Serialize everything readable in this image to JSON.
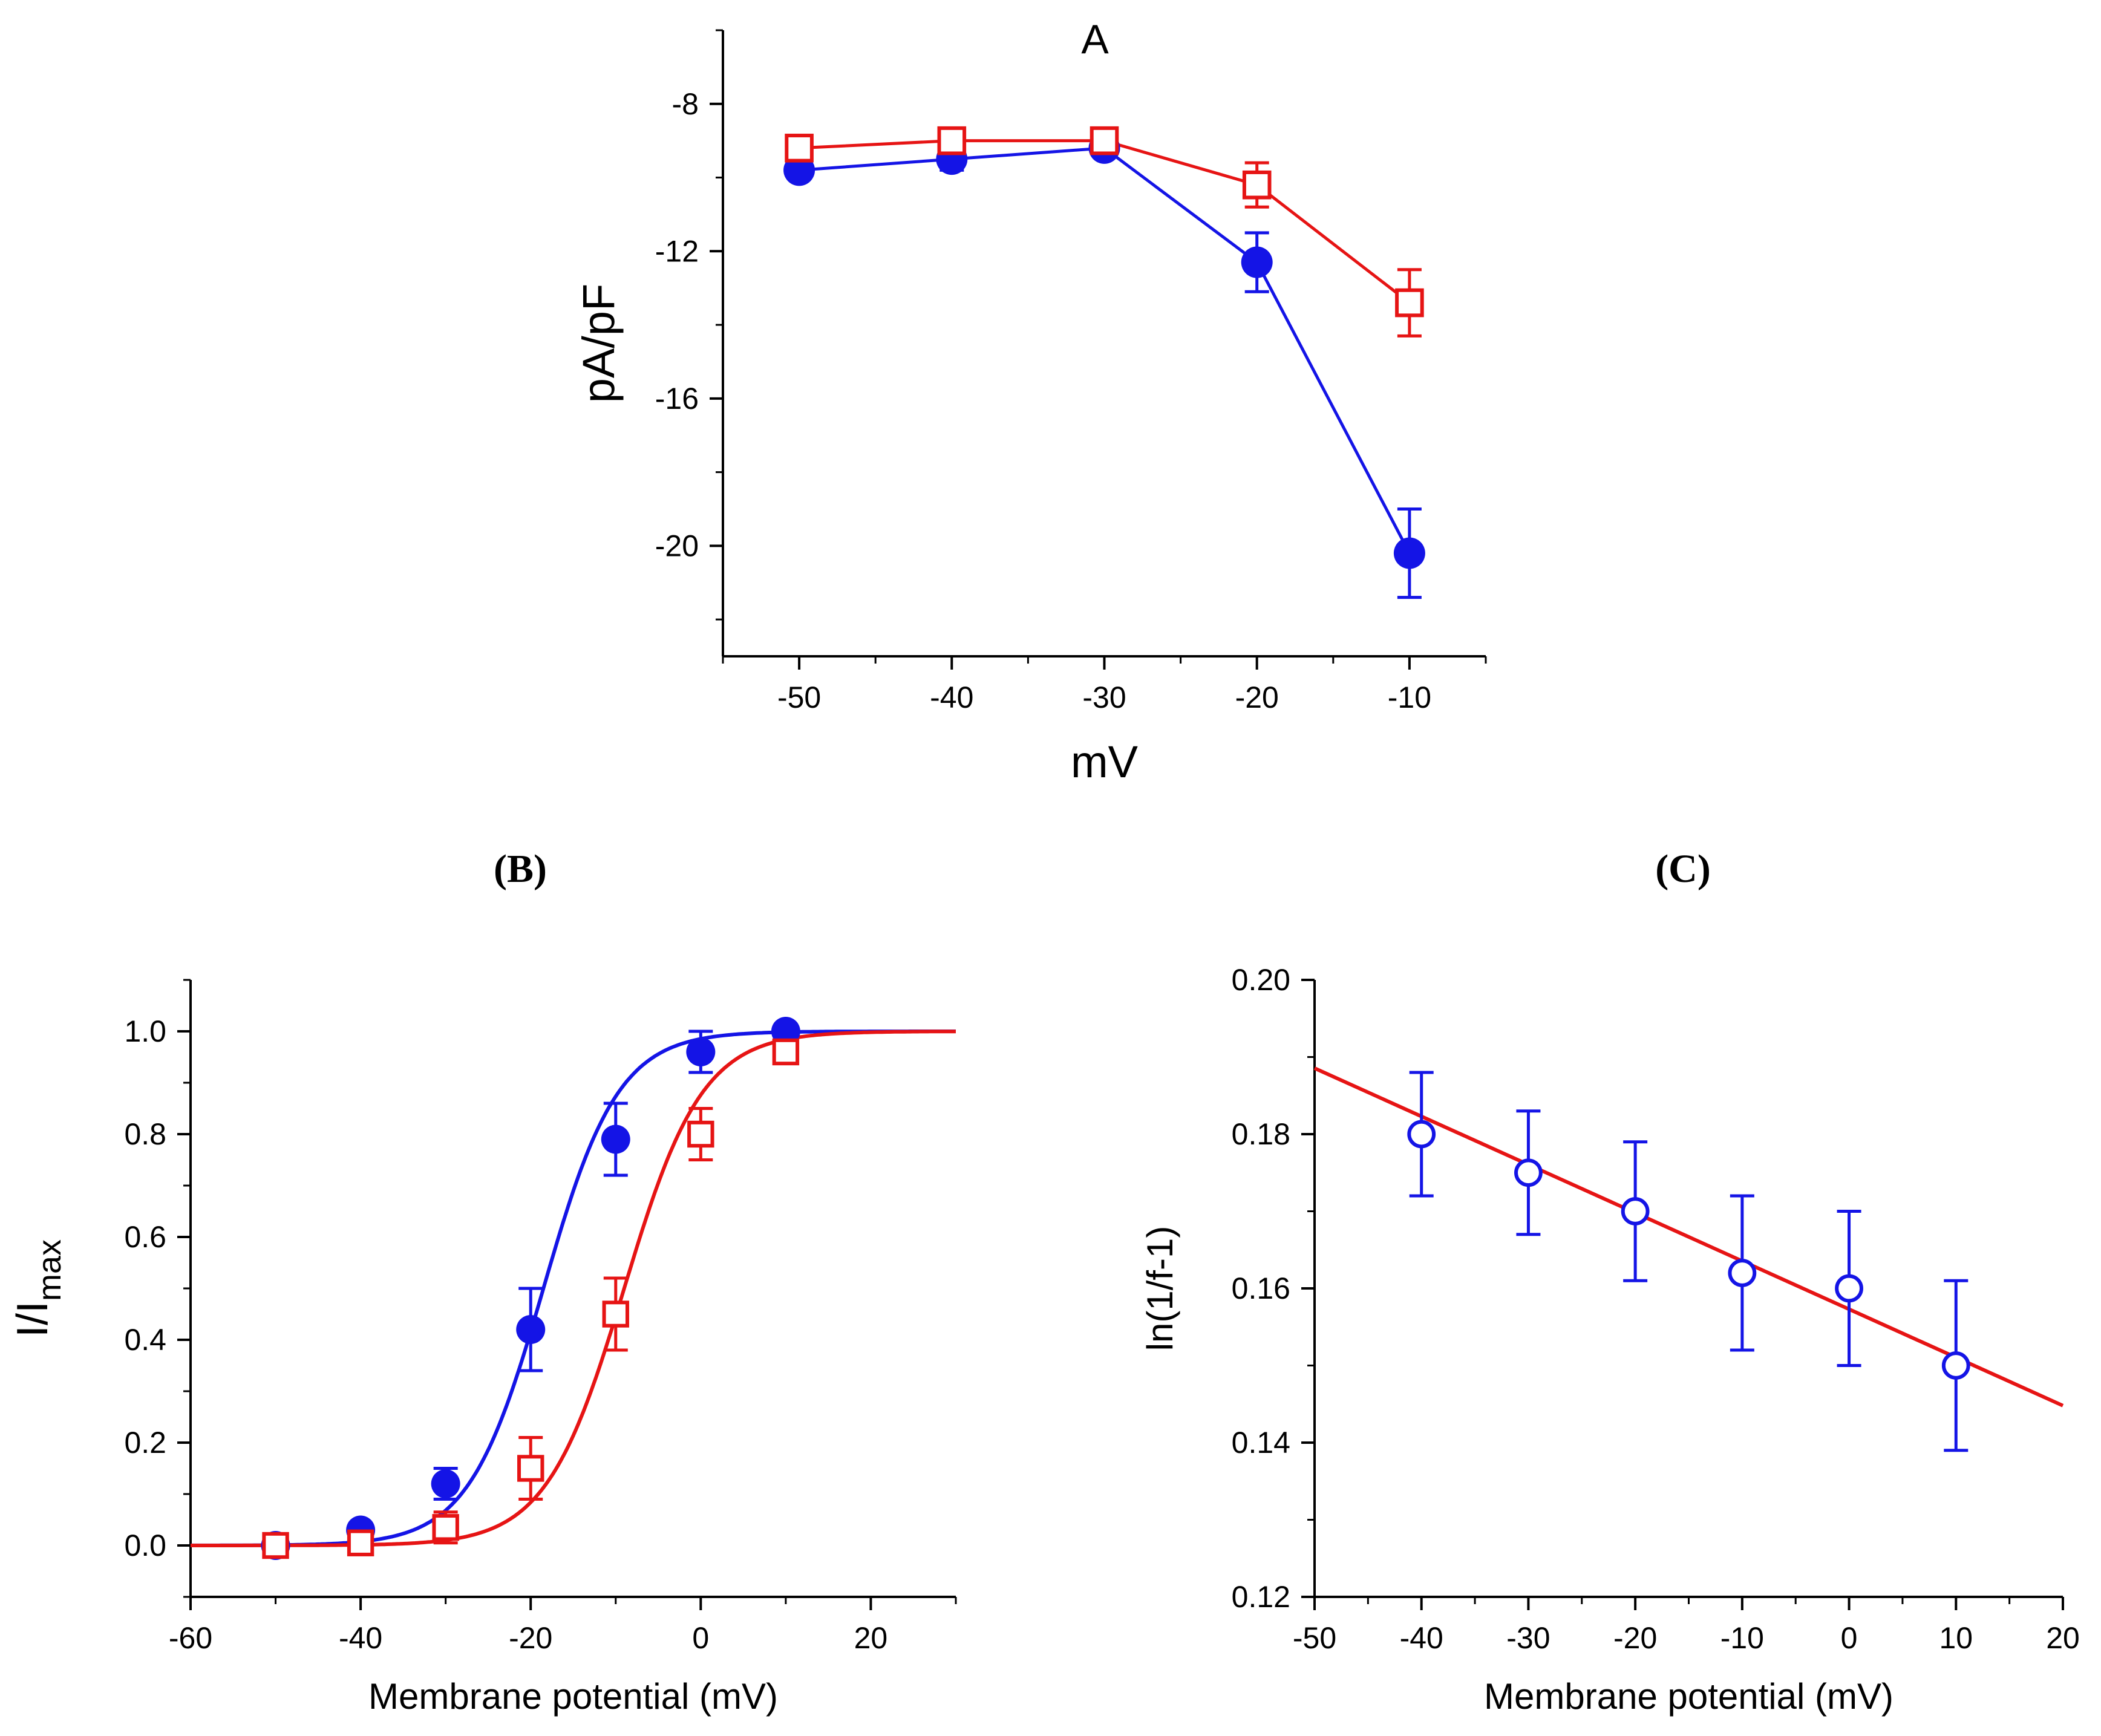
{
  "colors": {
    "series_filled": "#1414e6",
    "series_open": "#e61414",
    "axis": "#000000"
  },
  "chart_data": [
    {
      "panel_id": "A",
      "panel_label": "A",
      "type": "line",
      "title": "",
      "xlabel": "mV",
      "ylabel": "pA/pF",
      "xlim": [
        -55,
        -5
      ],
      "ylim": [
        -23,
        -6
      ],
      "x_ticks": [
        -50,
        -40,
        -30,
        -20,
        -10
      ],
      "x_tick_labels": [
        "-50",
        "-40",
        "-30",
        "-20",
        "-10"
      ],
      "y_ticks": [
        -8,
        -12,
        -16,
        -20
      ],
      "y_tick_labels": [
        "-8",
        "-12",
        "-16",
        "-20"
      ],
      "grid": false,
      "series": [
        {
          "name": "filled circles",
          "marker": "filled-circle",
          "color": "#1414e6",
          "x": [
            -50,
            -40,
            -30,
            -20,
            -10
          ],
          "y": [
            -9.8,
            -9.5,
            -9.2,
            -12.3,
            -20.2
          ],
          "yerr": [
            0.2,
            0.3,
            0.2,
            0.8,
            1.2
          ]
        },
        {
          "name": "open squares",
          "marker": "open-square",
          "color": "#e61414",
          "x": [
            -50,
            -40,
            -30,
            -20,
            -10
          ],
          "y": [
            -9.2,
            -9.0,
            -9.0,
            -10.2,
            -13.4
          ],
          "yerr": [
            0.3,
            0.2,
            0.2,
            0.6,
            0.9
          ]
        }
      ]
    },
    {
      "panel_id": "B",
      "panel_label": "(B)",
      "type": "scatter",
      "title": "",
      "xlabel": "Membrane potential (mV)",
      "ylabel_main": "I/I",
      "ylabel_sub": "max",
      "xlim": [
        -60,
        30
      ],
      "ylim": [
        -0.1,
        1.1
      ],
      "x_ticks": [
        -60,
        -40,
        -20,
        0,
        20
      ],
      "x_tick_labels": [
        "-60",
        "-40",
        "-20",
        "0",
        "20"
      ],
      "y_ticks": [
        0.0,
        0.2,
        0.4,
        0.6,
        0.8,
        1.0
      ],
      "y_tick_labels": [
        "0.0",
        "0.2",
        "0.4",
        "0.6",
        "0.8",
        "1.0"
      ],
      "grid": false,
      "series": [
        {
          "name": "filled circles",
          "marker": "filled-circle",
          "color": "#1414e6",
          "x": [
            -50,
            -40,
            -30,
            -20,
            -10,
            0,
            10
          ],
          "y": [
            0.0,
            0.03,
            0.12,
            0.42,
            0.79,
            0.96,
            1.0
          ],
          "yerr": [
            0.01,
            0.01,
            0.03,
            0.08,
            0.07,
            0.04,
            0.01
          ],
          "fit": {
            "model": "boltzmann",
            "v_half": -18.5,
            "k": 4.4
          }
        },
        {
          "name": "open squares",
          "marker": "open-square",
          "color": "#e61414",
          "x": [
            -50,
            -40,
            -30,
            -20,
            -10,
            0,
            10
          ],
          "y": [
            0.0,
            0.005,
            0.035,
            0.15,
            0.45,
            0.8,
            0.96
          ],
          "yerr": [
            0.01,
            0.01,
            0.03,
            0.06,
            0.07,
            0.05,
            0.02
          ],
          "fit": {
            "model": "boltzmann",
            "v_half": -9.0,
            "k": 4.6
          }
        }
      ]
    },
    {
      "panel_id": "C",
      "panel_label": "(C)",
      "type": "scatter",
      "title": "",
      "xlabel": "Membrane potential (mV)",
      "ylabel": "ln(1/f-1)",
      "xlim": [
        -50,
        20
      ],
      "ylim": [
        0.12,
        0.2
      ],
      "x_ticks": [
        -50,
        -40,
        -30,
        -20,
        -10,
        0,
        10,
        20
      ],
      "x_tick_labels": [
        "-50",
        "-40",
        "-30",
        "-20",
        "-10",
        "0",
        "10",
        "20"
      ],
      "y_ticks": [
        0.12,
        0.14,
        0.16,
        0.18,
        0.2
      ],
      "y_tick_labels": [
        "0.12",
        "0.14",
        "0.16",
        "0.18",
        "0.20"
      ],
      "grid": false,
      "series": [
        {
          "name": "open circles",
          "marker": "open-circle",
          "color": "#1414e6",
          "x": [
            -40,
            -30,
            -20,
            -10,
            0,
            10
          ],
          "y": [
            0.18,
            0.175,
            0.17,
            0.162,
            0.16,
            0.15
          ],
          "yerr": [
            0.008,
            0.008,
            0.009,
            0.01,
            0.01,
            0.011
          ]
        }
      ],
      "fit_line": {
        "color": "#e61414",
        "slope": -0.000625,
        "intercept": 0.1573,
        "x_range": [
          -50,
          20
        ]
      }
    }
  ]
}
